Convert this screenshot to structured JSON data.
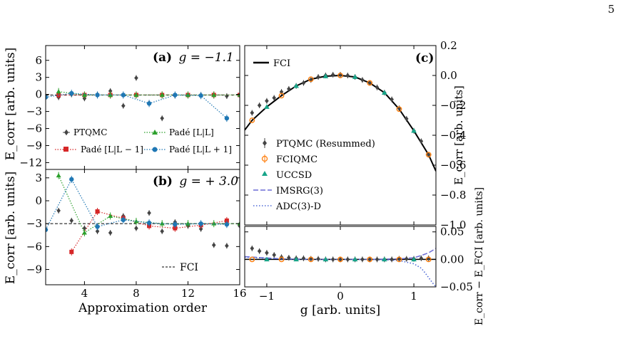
{
  "page_number": "5",
  "colors": {
    "ptqmc": "#444444",
    "pade_lm1": "#d62728",
    "pade_l": "#2ca02c",
    "pade_lp1": "#1f77b4",
    "fciqmc": "#ff7f0e",
    "uccsd": "#17a589",
    "imsrg": "#6b6bd6",
    "adc": "#4f6ad6",
    "fci": "#000000"
  },
  "chart_data": [
    {
      "id": "a",
      "type": "scatter",
      "panel_label": "(a)",
      "title": "g = −1.1",
      "xlabel": "",
      "ylabel": "E_corr [arb. units]",
      "xlim": [
        1,
        16
      ],
      "ylim": [
        -13.2,
        8.6
      ],
      "yticks": [
        6,
        3,
        0,
        -3,
        -6,
        -9,
        -12
      ],
      "xticks": [
        4,
        8,
        12,
        16
      ],
      "fci_value": -0.1,
      "legend": {
        "placement": "bottom",
        "entries": [
          "PTQMC",
          "Padé [L|L − 1]",
          "Padé [L|L]",
          "Padé [L|L + 1]"
        ]
      },
      "series": [
        {
          "name": "PTQMC",
          "style": "ptqmc",
          "x": [
            1,
            2,
            3,
            4,
            5,
            6,
            7,
            8,
            9,
            10,
            11,
            12,
            13,
            14,
            15,
            16
          ],
          "y": [
            -0.5,
            -0.5,
            0.0,
            -0.7,
            0.0,
            0.6,
            -2.0,
            2.9,
            -1.5,
            -4.2,
            -0.2,
            -0.2,
            -0.1,
            -0.1,
            -0.3,
            -0.2
          ]
        },
        {
          "name": "Padé [L|L − 1]",
          "style": "pade_lm1",
          "x": [
            2,
            4,
            6,
            8,
            10,
            12,
            14,
            16
          ],
          "y": [
            -0.1,
            -0.1,
            -0.1,
            -0.1,
            -0.1,
            -0.1,
            -0.1,
            -0.1
          ]
        },
        {
          "name": "Padé [L|L]",
          "style": "pade_l",
          "x": [
            2,
            4,
            6,
            8,
            10,
            12,
            14,
            16
          ],
          "y": [
            0.5,
            -0.1,
            -0.1,
            -0.1,
            -0.1,
            -0.1,
            -0.1,
            -0.1
          ]
        },
        {
          "name": "Padé [L|L + 1]",
          "style": "pade_lp1",
          "x": [
            1,
            3,
            5,
            7,
            9,
            11,
            13,
            15
          ],
          "y": [
            -0.5,
            0.2,
            -0.1,
            -0.1,
            -1.6,
            -0.1,
            -0.2,
            -4.2
          ]
        }
      ]
    },
    {
      "id": "b",
      "type": "scatter",
      "panel_label": "(b)",
      "title": "g = + 3.0",
      "xlabel": "Approximation order",
      "ylabel": "E_corr [arb. units]",
      "xlim": [
        1,
        16
      ],
      "ylim": [
        -11,
        4.1
      ],
      "yticks": [
        3,
        0,
        -3,
        -6,
        -9
      ],
      "xticks": [
        4,
        8,
        12,
        16
      ],
      "fci_value": -3.0,
      "legend": {
        "placement": "bottom-right",
        "entries": [
          "FCI"
        ]
      },
      "series": [
        {
          "name": "PTQMC",
          "style": "ptqmc",
          "x": [
            1,
            2,
            3,
            4,
            5,
            6,
            7,
            8,
            9,
            10,
            11,
            12,
            13,
            14,
            15,
            16
          ],
          "y": [
            -3.8,
            -1.3,
            -2.6,
            -3.6,
            -4.0,
            -4.2,
            -2.0,
            -3.6,
            -1.6,
            -4.0,
            -2.8,
            -3.3,
            -3.7,
            -5.8,
            -5.9,
            -3.3
          ]
        },
        {
          "name": "Padé [L|L − 1]",
          "style": "pade_lm1",
          "x": [
            3,
            5,
            7,
            9,
            11,
            13,
            15
          ],
          "y": [
            -6.7,
            -1.4,
            -2.3,
            -3.3,
            -3.6,
            -3.2,
            -2.6
          ]
        },
        {
          "name": "Padé [L|L]",
          "style": "pade_l",
          "x": [
            2,
            4,
            6,
            8,
            10,
            12,
            14,
            16
          ],
          "y": [
            3.3,
            -4.2,
            -2.0,
            -2.7,
            -3.0,
            -3.0,
            -3.0,
            -3.0
          ]
        },
        {
          "name": "Padé [L|L + 1]",
          "style": "pade_lp1",
          "x": [
            1,
            3,
            5,
            7,
            9,
            11,
            13,
            15
          ],
          "y": [
            -3.8,
            2.8,
            -3.4,
            -2.5,
            -2.9,
            -3.1,
            -3.0,
            -3.1
          ]
        }
      ]
    },
    {
      "id": "c",
      "type": "line",
      "panel_label": "(c)",
      "xlabel": "",
      "ylabel": "E_corr [arb. units]",
      "xlim": [
        -1.3,
        1.3
      ],
      "ylim": [
        -1.0,
        0.2
      ],
      "yticks": [
        0.2,
        0.0,
        -0.2,
        -0.4,
        -0.6,
        -0.8,
        -1.0
      ],
      "xticks": [
        -1,
        0,
        1
      ],
      "legend_top": {
        "placement": "top-left",
        "entries": [
          "FCI"
        ]
      },
      "legend_bottom": {
        "placement": "bottom-left",
        "entries": [
          "PTQMC (Resummed)",
          "FCIQMC",
          "UCCSD",
          "IMSRG(3)",
          "ADC(3)-D"
        ]
      },
      "fci_curve": {
        "x": [
          -1.3,
          -1.2,
          -1.0,
          -0.8,
          -0.6,
          -0.4,
          -0.2,
          0.0,
          0.2,
          0.4,
          0.6,
          0.8,
          1.0,
          1.2,
          1.3
        ],
        "y": [
          -0.365,
          -0.3,
          -0.21,
          -0.135,
          -0.07,
          -0.025,
          -0.005,
          0.0,
          -0.01,
          -0.05,
          -0.115,
          -0.225,
          -0.37,
          -0.53,
          -0.64
        ]
      },
      "ptqmc_points": {
        "x": [
          -1.2,
          -1.1,
          -1.0,
          -0.9,
          -0.8,
          -0.7,
          -0.6,
          -0.5,
          -0.4,
          -0.3,
          -0.2,
          -0.1,
          0.0,
          0.1,
          0.2,
          0.3,
          0.4,
          0.5,
          0.6,
          0.7,
          0.8,
          0.9,
          1.0,
          1.1,
          1.2
        ],
        "y": [
          -0.25,
          -0.2,
          -0.17,
          -0.15,
          -0.11,
          -0.09,
          -0.07,
          -0.05,
          -0.03,
          -0.01,
          0.0,
          0.005,
          0.005,
          0.0,
          -0.01,
          -0.03,
          -0.05,
          -0.08,
          -0.115,
          -0.16,
          -0.22,
          -0.29,
          -0.37,
          -0.44,
          -0.53
        ]
      },
      "fciqmc_points": {
        "x": [
          -1.2,
          -0.8,
          -0.4,
          0.0,
          0.4,
          0.8,
          1.2
        ],
        "y": [
          -0.3,
          -0.135,
          -0.025,
          0.0,
          -0.05,
          -0.225,
          -0.53
        ]
      },
      "uccsd_points": {
        "x": [
          -1.0,
          -0.6,
          -0.2,
          0.2,
          0.6,
          1.0
        ],
        "y": [
          -0.21,
          -0.07,
          -0.005,
          -0.01,
          -0.115,
          -0.37
        ]
      }
    },
    {
      "id": "d",
      "type": "line",
      "xlabel": "g [arb. units]",
      "ylabel": "E_corr − E_FCI [arb. units]",
      "xlim": [
        -1.3,
        1.3
      ],
      "ylim": [
        -0.05,
        0.06
      ],
      "yticks": [
        0.05,
        0.0,
        -0.05
      ],
      "ytick_labels": [
        "0.05",
        "0.00",
        "−0.05"
      ],
      "xticks": [
        -1,
        0,
        1
      ],
      "ptqmc_points": {
        "x": [
          -1.2,
          -1.1,
          -1.0,
          -0.9,
          -0.8,
          -0.7,
          -0.6,
          -0.5,
          -0.4,
          -0.3,
          -0.2,
          -0.1,
          0.0,
          0.1,
          0.2,
          0.3,
          0.4,
          0.5,
          0.6,
          0.7,
          0.8,
          0.9,
          1.0,
          1.1,
          1.2
        ],
        "y": [
          0.02,
          0.015,
          0.012,
          0.008,
          0.004,
          0.003,
          0.002,
          0.002,
          0.001,
          0.001,
          0.0,
          0.0,
          0.0,
          0.0,
          0.0,
          0.0,
          0.0,
          0.0,
          0.0,
          0.0,
          0.001,
          0.001,
          0.001,
          0.002,
          0.002
        ]
      },
      "imsrg_curve": {
        "x": [
          -1.3,
          -0.8,
          -0.4,
          0.0,
          0.4,
          0.8,
          1.0,
          1.1,
          1.2,
          1.3
        ],
        "y": [
          0.005,
          0.001,
          0.0,
          0.0,
          0.0,
          0.001,
          0.003,
          0.007,
          0.012,
          0.02
        ]
      },
      "adc_curve": {
        "x": [
          -1.3,
          -0.8,
          -0.4,
          0.0,
          0.4,
          0.8,
          1.0,
          1.1,
          1.15,
          1.2,
          1.25,
          1.3
        ],
        "y": [
          0.004,
          0.001,
          0.0,
          0.0,
          0.0,
          -0.002,
          -0.008,
          -0.016,
          -0.024,
          -0.033,
          -0.042,
          -0.05
        ]
      }
    }
  ]
}
